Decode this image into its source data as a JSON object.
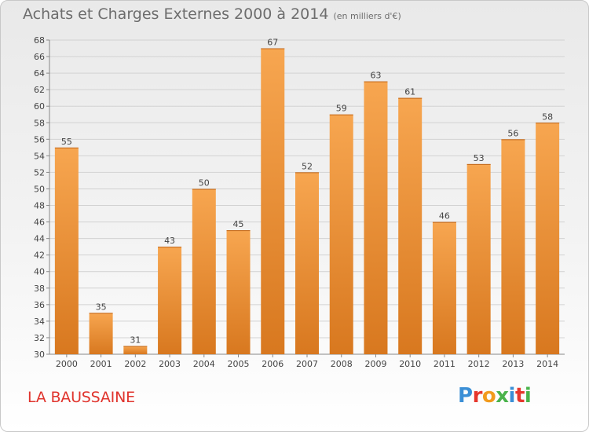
{
  "header": {
    "title": "Achats et Charges Externes 2000 à 2014",
    "subtitle": "(en milliers d'€)"
  },
  "footer": {
    "place": "LA BAUSSAINE",
    "logo_text": "Proxiti"
  },
  "colors": {
    "bar_light": "#f7a650",
    "bar_dark": "#d8781f",
    "place_text": "#e0342d",
    "logo_letters": [
      "#3b8fd6",
      "#e6362c",
      "#f29b1d",
      "#4ab34b",
      "#3b8fd6",
      "#e6362c",
      "#4ab34b"
    ]
  },
  "chart_data": {
    "type": "bar",
    "title": "Achats et Charges Externes 2000 à 2014",
    "subtitle": "(en milliers d'€)",
    "categories": [
      "2000",
      "2001",
      "2002",
      "2003",
      "2004",
      "2005",
      "2006",
      "2007",
      "2008",
      "2009",
      "2010",
      "2011",
      "2012",
      "2013",
      "2014"
    ],
    "values": [
      55,
      35,
      31,
      43,
      50,
      45,
      67,
      52,
      59,
      63,
      61,
      46,
      53,
      56,
      58
    ],
    "ylim": [
      30,
      68
    ],
    "yticks": [
      30,
      32,
      34,
      36,
      38,
      40,
      42,
      44,
      46,
      48,
      50,
      52,
      54,
      56,
      58,
      60,
      62,
      64,
      66,
      68
    ],
    "grid": true,
    "data_labels": true
  }
}
